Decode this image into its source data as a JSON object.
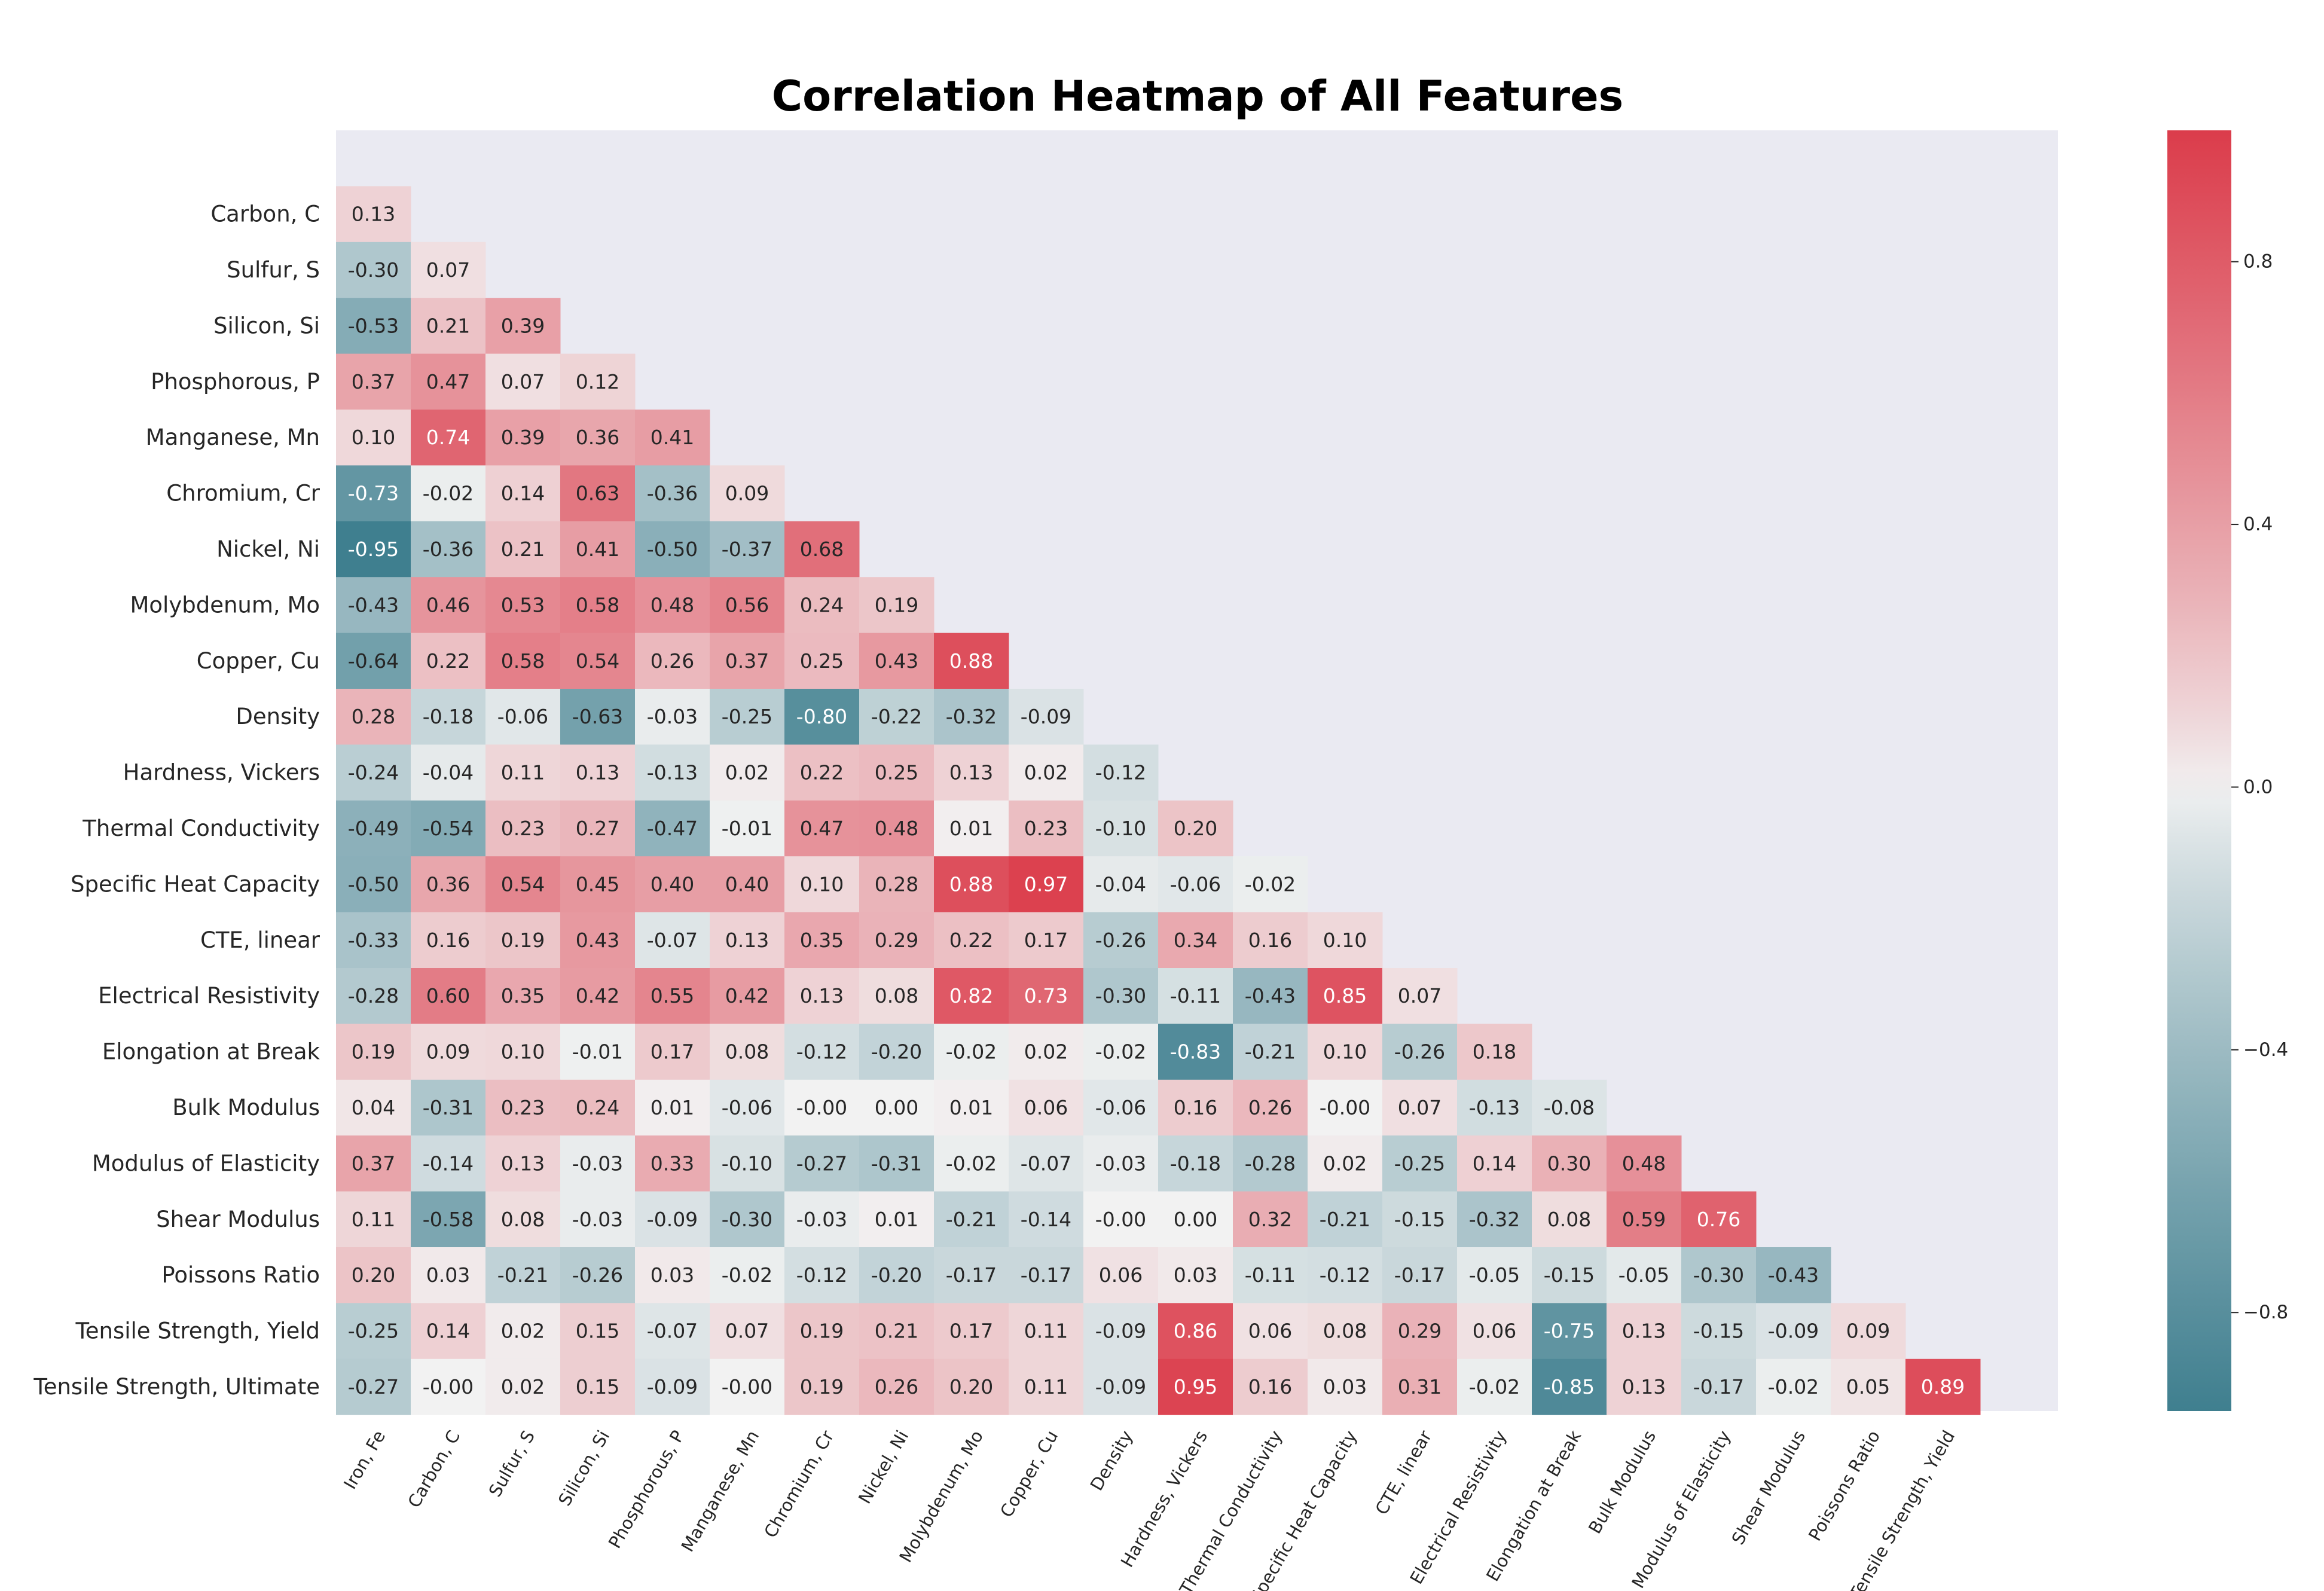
{
  "chart_data": {
    "type": "heatmap",
    "title": "Correlation Heatmap of All Features",
    "mask": "upper triangle (incl. diagonal) hidden",
    "x_categories": [
      "Iron, Fe",
      "Carbon, C",
      "Sulfur, S",
      "Silicon, Si",
      "Phosphorous, P",
      "Manganese, Mn",
      "Chromium, Cr",
      "Nickel, Ni",
      "Molybdenum, Mo",
      "Copper, Cu",
      "Density",
      "Hardness, Vickers",
      "Thermal Conductivity",
      "Specific Heat Capacity",
      "CTE, linear",
      "Electrical Resistivity",
      "Elongation at Break",
      "Bulk Modulus",
      "Modulus of Elasticity",
      "Shear Modulus",
      "Poissons Ratio",
      "Tensile Strength, Yield"
    ],
    "y_categories": [
      "Carbon, C",
      "Sulfur, S",
      "Silicon, Si",
      "Phosphorous, P",
      "Manganese, Mn",
      "Chromium, Cr",
      "Nickel, Ni",
      "Molybdenum, Mo",
      "Copper, Cu",
      "Density",
      "Hardness, Vickers",
      "Thermal Conductivity",
      "Specific Heat Capacity",
      "CTE, linear",
      "Electrical Resistivity",
      "Elongation at Break",
      "Bulk Modulus",
      "Modulus of Elasticity",
      "Shear Modulus",
      "Poissons Ratio",
      "Tensile Strength, Yield",
      "Tensile Strength, Ultimate"
    ],
    "values": [
      [
        "0.13"
      ],
      [
        "-0.30",
        "0.07"
      ],
      [
        "-0.53",
        "0.21",
        "0.39"
      ],
      [
        "0.37",
        "0.47",
        "0.07",
        "0.12"
      ],
      [
        "0.10",
        "0.74",
        "0.39",
        "0.36",
        "0.41"
      ],
      [
        "-0.73",
        "-0.02",
        "0.14",
        "0.63",
        "-0.36",
        "0.09"
      ],
      [
        "-0.95",
        "-0.36",
        "0.21",
        "0.41",
        "-0.50",
        "-0.37",
        "0.68"
      ],
      [
        "-0.43",
        "0.46",
        "0.53",
        "0.58",
        "0.48",
        "0.56",
        "0.24",
        "0.19"
      ],
      [
        "-0.64",
        "0.22",
        "0.58",
        "0.54",
        "0.26",
        "0.37",
        "0.25",
        "0.43",
        "0.88"
      ],
      [
        "0.28",
        "-0.18",
        "-0.06",
        "-0.63",
        "-0.03",
        "-0.25",
        "-0.80",
        "-0.22",
        "-0.32",
        "-0.09"
      ],
      [
        "-0.24",
        "-0.04",
        "0.11",
        "0.13",
        "-0.13",
        "0.02",
        "0.22",
        "0.25",
        "0.13",
        "0.02",
        "-0.12"
      ],
      [
        "-0.49",
        "-0.54",
        "0.23",
        "0.27",
        "-0.47",
        "-0.01",
        "0.47",
        "0.48",
        "0.01",
        "0.23",
        "-0.10",
        "0.20"
      ],
      [
        "-0.50",
        "0.36",
        "0.54",
        "0.45",
        "0.40",
        "0.40",
        "0.10",
        "0.28",
        "0.88",
        "0.97",
        "-0.04",
        "-0.06",
        "-0.02"
      ],
      [
        "-0.33",
        "0.16",
        "0.19",
        "0.43",
        "-0.07",
        "0.13",
        "0.35",
        "0.29",
        "0.22",
        "0.17",
        "-0.26",
        "0.34",
        "0.16",
        "0.10"
      ],
      [
        "-0.28",
        "0.60",
        "0.35",
        "0.42",
        "0.55",
        "0.42",
        "0.13",
        "0.08",
        "0.82",
        "0.73",
        "-0.30",
        "-0.11",
        "-0.43",
        "0.85",
        "0.07"
      ],
      [
        "0.19",
        "0.09",
        "0.10",
        "-0.01",
        "0.17",
        "0.08",
        "-0.12",
        "-0.20",
        "-0.02",
        "0.02",
        "-0.02",
        "-0.83",
        "-0.21",
        "0.10",
        "-0.26",
        "0.18"
      ],
      [
        "0.04",
        "-0.31",
        "0.23",
        "0.24",
        "0.01",
        "-0.06",
        "-0.00",
        "0.00",
        "0.01",
        "0.06",
        "-0.06",
        "0.16",
        "0.26",
        "-0.00",
        "0.07",
        "-0.13",
        "-0.08"
      ],
      [
        "0.37",
        "-0.14",
        "0.13",
        "-0.03",
        "0.33",
        "-0.10",
        "-0.27",
        "-0.31",
        "-0.02",
        "-0.07",
        "-0.03",
        "-0.18",
        "-0.28",
        "0.02",
        "-0.25",
        "0.14",
        "0.30",
        "0.48"
      ],
      [
        "0.11",
        "-0.58",
        "0.08",
        "-0.03",
        "-0.09",
        "-0.30",
        "-0.03",
        "0.01",
        "-0.21",
        "-0.14",
        "-0.00",
        "0.00",
        "0.32",
        "-0.21",
        "-0.15",
        "-0.32",
        "0.08",
        "0.59",
        "0.76"
      ],
      [
        "0.20",
        "0.03",
        "-0.21",
        "-0.26",
        "0.03",
        "-0.02",
        "-0.12",
        "-0.20",
        "-0.17",
        "-0.17",
        "0.06",
        "0.03",
        "-0.11",
        "-0.12",
        "-0.17",
        "-0.05",
        "-0.15",
        "-0.05",
        "-0.30",
        "-0.43"
      ],
      [
        "-0.25",
        "0.14",
        "0.02",
        "0.15",
        "-0.07",
        "0.07",
        "0.19",
        "0.21",
        "0.17",
        "0.11",
        "-0.09",
        "0.86",
        "0.06",
        "0.08",
        "0.29",
        "0.06",
        "-0.75",
        "0.13",
        "-0.15",
        "-0.09",
        "0.09"
      ],
      [
        "-0.27",
        "-0.00",
        "0.02",
        "0.15",
        "-0.09",
        "-0.00",
        "0.19",
        "0.26",
        "0.20",
        "0.11",
        "-0.09",
        "0.95",
        "0.16",
        "0.03",
        "0.31",
        "-0.02",
        "-0.85",
        "0.13",
        "-0.17",
        "-0.02",
        "0.05",
        "0.89"
      ]
    ],
    "colorbar": {
      "range": [
        -0.95,
        1.0
      ],
      "ticks": [
        "0.8",
        "0.4",
        "0.0",
        "−0.4",
        "−0.8"
      ],
      "tick_values": [
        0.8,
        0.4,
        0.0,
        -0.4,
        -0.8
      ],
      "colors": {
        "negative": "#3f7f8f",
        "center": "#f2f2f2",
        "positive": "#db3c4b"
      }
    },
    "plot_background": "#eaeaf2",
    "grid": false
  }
}
